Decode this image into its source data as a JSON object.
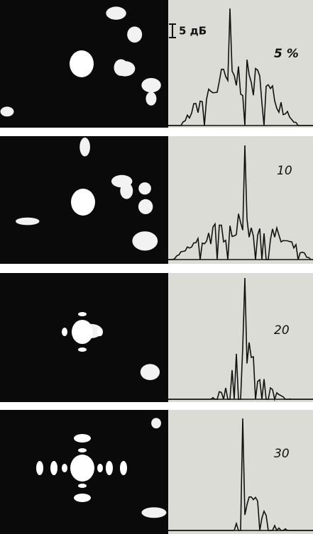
{
  "scale_bar": {
    "label": "5 дБ"
  },
  "panels": [
    {
      "label": "5 %"
    },
    {
      "label": "10"
    },
    {
      "label": "20"
    },
    {
      "label": "30"
    }
  ]
}
